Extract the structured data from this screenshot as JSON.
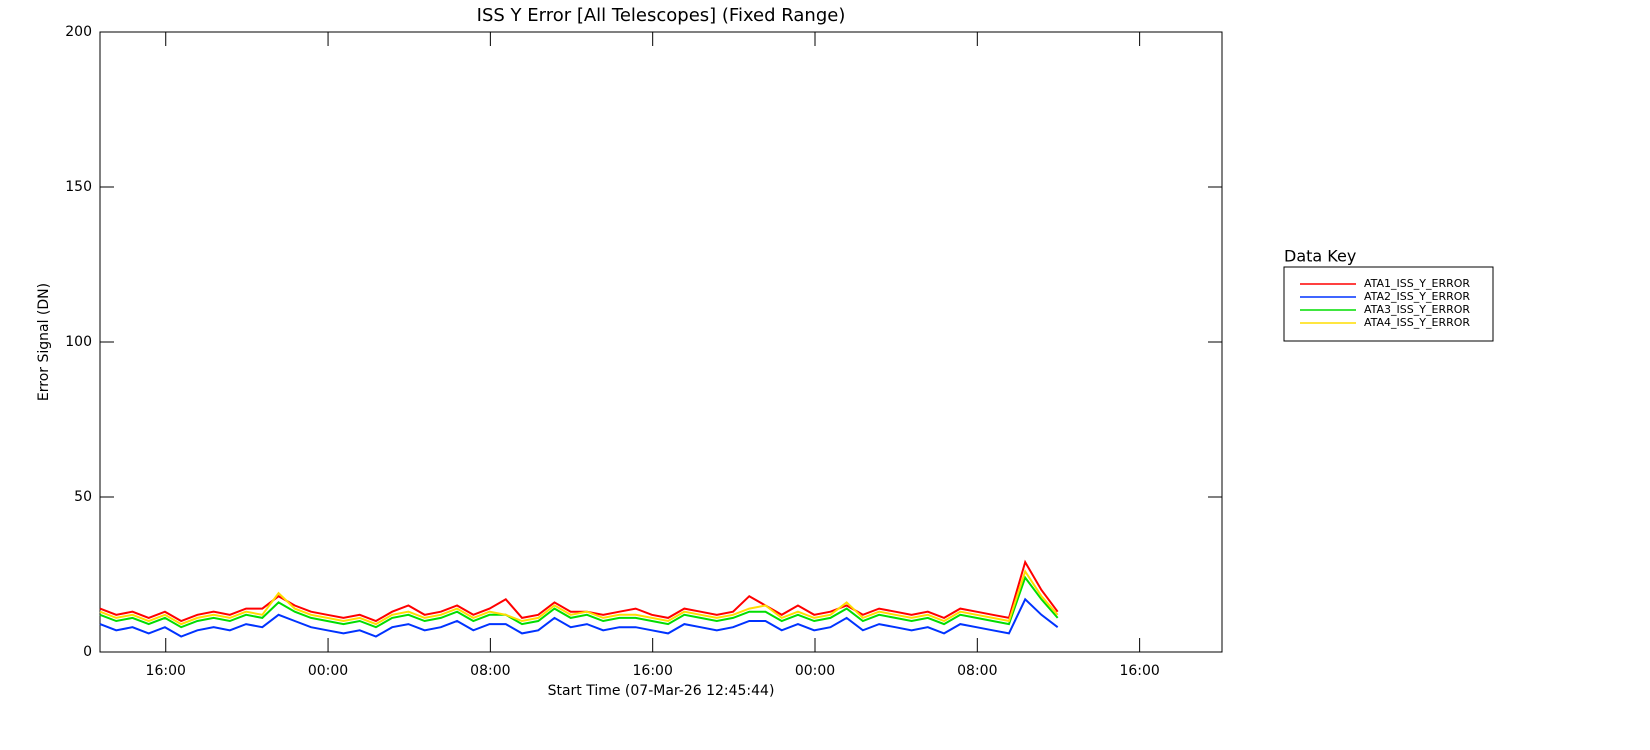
{
  "chart_data": {
    "type": "line",
    "title": "ISS Y Error [All Telescopes] (Fixed Range)",
    "x_label": "Start Time (07-Mar-26 12:45:44)",
    "y_label": "Error Signal (DN)",
    "legend_title": "Data Key",
    "xlim": [
      0,
      55.3
    ],
    "xticks": [
      {
        "value": 3.24,
        "label": "16:00"
      },
      {
        "value": 11.24,
        "label": "00:00"
      },
      {
        "value": 19.24,
        "label": "08:00"
      },
      {
        "value": 27.24,
        "label": "16:00"
      },
      {
        "value": 35.24,
        "label": "00:00"
      },
      {
        "value": 43.24,
        "label": "08:00"
      },
      {
        "value": 51.24,
        "label": "16:00"
      }
    ],
    "ylim": [
      0,
      200
    ],
    "yticks": [
      0,
      50,
      100,
      150,
      200
    ],
    "x": [
      0,
      0.8,
      1.6,
      2.4,
      3.2,
      4,
      4.8,
      5.6,
      6.4,
      7.2,
      8,
      8.8,
      9.6,
      10.4,
      11.2,
      12,
      12.8,
      13.6,
      14.4,
      15.2,
      16,
      16.8,
      17.6,
      18.4,
      19.2,
      20,
      20.8,
      21.6,
      22.4,
      23.2,
      24,
      24.8,
      25.6,
      26.4,
      27.2,
      28,
      28.8,
      29.6,
      30.4,
      31.2,
      32,
      32.8,
      33.6,
      34.4,
      35.2,
      36,
      36.8,
      37.6,
      38.4,
      39.2,
      40,
      40.8,
      41.6,
      42.4,
      43.2,
      44,
      44.8,
      45.6,
      46.4,
      47.2
    ],
    "series": [
      {
        "name": "ATA1_ISS_Y_ERROR",
        "color": "#ff0000",
        "values": [
          14,
          12,
          13,
          11,
          13,
          10,
          12,
          13,
          12,
          14,
          14,
          18,
          15,
          13,
          12,
          11,
          12,
          10,
          13,
          15,
          12,
          13,
          15,
          12,
          14,
          17,
          11,
          12,
          16,
          13,
          13,
          12,
          13,
          14,
          12,
          11,
          14,
          13,
          12,
          13,
          18,
          15,
          12,
          15,
          12,
          13,
          15,
          12,
          14,
          13,
          12,
          13,
          11,
          14,
          13,
          12,
          11,
          29,
          20,
          13
        ]
      },
      {
        "name": "ATA2_ISS_Y_ERROR",
        "color": "#0033ff",
        "values": [
          9,
          7,
          8,
          6,
          8,
          5,
          7,
          8,
          7,
          9,
          8,
          12,
          10,
          8,
          7,
          6,
          7,
          5,
          8,
          9,
          7,
          8,
          10,
          7,
          9,
          9,
          6,
          7,
          11,
          8,
          9,
          7,
          8,
          8,
          7,
          6,
          9,
          8,
          7,
          8,
          10,
          10,
          7,
          9,
          7,
          8,
          11,
          7,
          9,
          8,
          7,
          8,
          6,
          9,
          8,
          7,
          6,
          17,
          12,
          8
        ]
      },
      {
        "name": "ATA3_ISS_Y_ERROR",
        "color": "#00dd00",
        "values": [
          12,
          10,
          11,
          9,
          11,
          8,
          10,
          11,
          10,
          12,
          11,
          16,
          13,
          11,
          10,
          9,
          10,
          8,
          11,
          12,
          10,
          11,
          13,
          10,
          12,
          12,
          9,
          10,
          14,
          11,
          12,
          10,
          11,
          11,
          10,
          9,
          12,
          11,
          10,
          11,
          13,
          13,
          10,
          12,
          10,
          11,
          14,
          10,
          12,
          11,
          10,
          11,
          9,
          12,
          11,
          10,
          9,
          24,
          17,
          11
        ]
      },
      {
        "name": "ATA4_ISS_Y_ERROR",
        "color": "#ffdd00",
        "values": [
          13,
          11,
          12,
          10,
          12,
          9,
          11,
          12,
          11,
          13,
          12,
          19,
          14,
          12,
          11,
          10,
          11,
          9,
          12,
          13,
          11,
          12,
          14,
          11,
          13,
          12,
          10,
          11,
          15,
          12,
          13,
          11,
          12,
          12,
          11,
          10,
          13,
          12,
          11,
          12,
          14,
          15,
          11,
          13,
          11,
          12,
          16,
          11,
          13,
          12,
          11,
          12,
          10,
          13,
          12,
          11,
          10,
          26,
          18,
          12
        ]
      }
    ]
  }
}
